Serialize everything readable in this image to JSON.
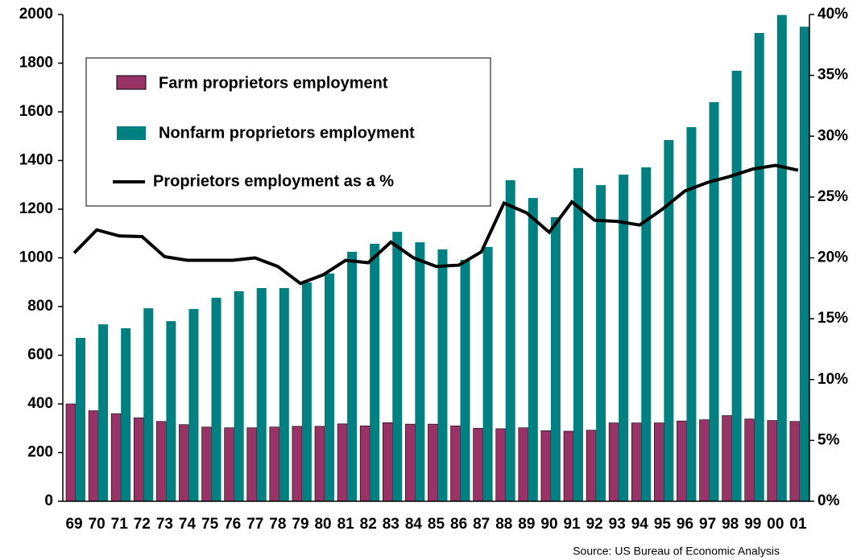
{
  "chart_data": {
    "type": "bar_line",
    "source": "Source:  US Bureau of Economic Analysis",
    "categories": [
      "69",
      "70",
      "71",
      "72",
      "73",
      "74",
      "75",
      "76",
      "77",
      "78",
      "79",
      "80",
      "81",
      "82",
      "83",
      "84",
      "85",
      "86",
      "87",
      "88",
      "89",
      "90",
      "91",
      "92",
      "93",
      "94",
      "95",
      "96",
      "97",
      "98",
      "99",
      "00",
      "01"
    ],
    "series": [
      {
        "name": "Farm proprietors employment",
        "color": "#993366",
        "type": "bar",
        "values": [
          400,
          372,
          360,
          343,
          328,
          315,
          305,
          302,
          302,
          305,
          308,
          308,
          318,
          310,
          323,
          317,
          317,
          310,
          300,
          298,
          302,
          290,
          288,
          292,
          322,
          322,
          322,
          330,
          335,
          352,
          338,
          332,
          328
        ]
      },
      {
        "name": "Nonfarm proprietors employment",
        "color": "#008080",
        "type": "bar",
        "values": [
          671,
          727,
          711,
          793,
          740,
          790,
          836,
          863,
          876,
          876,
          899,
          936,
          1025,
          1058,
          1107,
          1064,
          1035,
          992,
          1045,
          1319,
          1246,
          1167,
          1369,
          1299,
          1342,
          1372,
          1484,
          1537,
          1640,
          1769,
          1924,
          1998,
          1950
        ]
      },
      {
        "name": "Proprietors employment as a %",
        "color": "#000000",
        "type": "line",
        "axis": "y2",
        "values": [
          20.4,
          22.3,
          21.8,
          21.75,
          20.1,
          19.8,
          19.8,
          19.8,
          20.0,
          19.3,
          17.9,
          18.6,
          19.8,
          19.6,
          21.3,
          20.0,
          19.3,
          19.4,
          20.5,
          24.5,
          23.7,
          22.1,
          24.6,
          23.1,
          23.0,
          22.7,
          24.0,
          25.5,
          26.2,
          26.7,
          27.3,
          27.6,
          27.2
        ]
      }
    ],
    "ylim": [
      0,
      2000
    ],
    "yticks": [
      0,
      200,
      400,
      600,
      800,
      1000,
      1200,
      1400,
      1600,
      1800,
      2000
    ],
    "y2lim": [
      0,
      40
    ],
    "y2ticks": [
      {
        "value": 0,
        "label": "0%"
      },
      {
        "value": 5,
        "label": "5%"
      },
      {
        "value": 10,
        "label": "10%"
      },
      {
        "value": 15,
        "label": "15%"
      },
      {
        "value": 20,
        "label": "20%"
      },
      {
        "value": 25,
        "label": "25%"
      },
      {
        "value": 30,
        "label": "30%"
      },
      {
        "value": 35,
        "label": "35%"
      },
      {
        "value": 40,
        "label": "40%"
      }
    ]
  }
}
